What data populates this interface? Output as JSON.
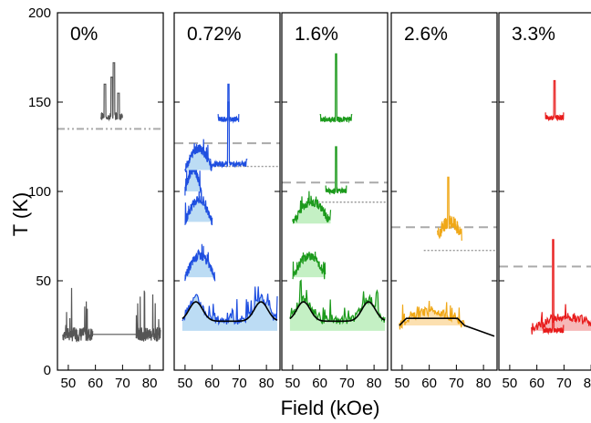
{
  "chart_data": {
    "type": "line",
    "xlabel": "Field (kOe)",
    "ylabel": "T (K)",
    "ylim": [
      0,
      200
    ],
    "xlim": [
      46,
      85
    ],
    "yticks": [
      0,
      50,
      100,
      150,
      200
    ],
    "xticks": [
      50,
      60,
      70,
      80
    ],
    "colors": {
      "0%": "#555555",
      "0.72%": "#1f4fe0",
      "1.6%": "#1c9a1c",
      "2.6%": "#f0a818",
      "3.3%": "#e81c1c",
      "fill_0.72%": "#bcdcf4",
      "fill_1.6%": "#c4f0c4",
      "fill_2.6%": "#fce0b0",
      "fill_3.3%": "#f6b8b8",
      "dashed": "#aaaaaa",
      "dotted": "#999999",
      "black_curve": "#000000"
    },
    "panels": [
      {
        "label": "0%",
        "dashdot_y": 135,
        "traces": [
          {
            "base": 20,
            "x_range": [
              48,
              59
            ],
            "style": "noise"
          },
          {
            "base": 20,
            "x_range": [
              59,
              75
            ],
            "style": "flat"
          },
          {
            "base": 20,
            "x_range": [
              75,
              84
            ],
            "style": "noise"
          },
          {
            "base": 140,
            "x_range": [
              62,
              70
            ],
            "style": "spikes"
          }
        ]
      },
      {
        "label": "0.72%",
        "dashed_y": 127,
        "dotted_y": 114,
        "traces": [
          {
            "base": 22,
            "x_range": [
              49,
              84
            ],
            "style": "double-hump"
          },
          {
            "base": 52,
            "x_range": [
              50,
              61
            ],
            "style": "hump"
          },
          {
            "base": 83,
            "x_range": [
              50,
              60
            ],
            "style": "hump"
          },
          {
            "base": 100,
            "x_range": [
              50,
              56
            ],
            "style": "hump"
          },
          {
            "base": 112,
            "x_range": [
              50,
              60
            ],
            "style": "hump"
          },
          {
            "base": 115,
            "x_range": [
              59,
              73
            ],
            "style": "peak",
            "peak_top": 150
          },
          {
            "base": 140,
            "x_range": [
              62,
              70
            ],
            "style": "peak",
            "peak_top": 160
          }
        ]
      },
      {
        "label": "1.6%",
        "dashed_y": 105,
        "dotted_y": 94,
        "traces": [
          {
            "base": 22,
            "x_range": [
              49,
              84
            ],
            "style": "double-hump"
          },
          {
            "base": 52,
            "x_range": [
              50,
              62
            ],
            "style": "hump"
          },
          {
            "base": 82,
            "x_range": [
              50,
              64
            ],
            "style": "hump"
          },
          {
            "base": 100,
            "x_range": [
              62,
              70
            ],
            "style": "peak",
            "peak_top": 125
          },
          {
            "base": 140,
            "x_range": [
              60,
              72
            ],
            "style": "peak",
            "peak_top": 177
          }
        ]
      },
      {
        "label": "2.6%",
        "dashed_y": 80,
        "dotted_y": 67,
        "traces": [
          {
            "base": 25,
            "x_range": [
              49,
              73
            ],
            "style": "hump-fill"
          },
          {
            "base": 72,
            "x_range": [
              63,
              72
            ],
            "style": "blob",
            "peak_top": 108
          }
        ]
      },
      {
        "label": "3.3%",
        "dashed_y": 58,
        "traces": [
          {
            "base": 22,
            "x_range": [
              58,
              84
            ],
            "style": "hump-fill"
          },
          {
            "base": 22,
            "x_range": [
              62,
              70
            ],
            "style": "peak",
            "peak_top": 73
          },
          {
            "base": 141,
            "x_range": [
              63,
              70
            ],
            "style": "peak",
            "peak_top": 162
          }
        ]
      }
    ]
  }
}
